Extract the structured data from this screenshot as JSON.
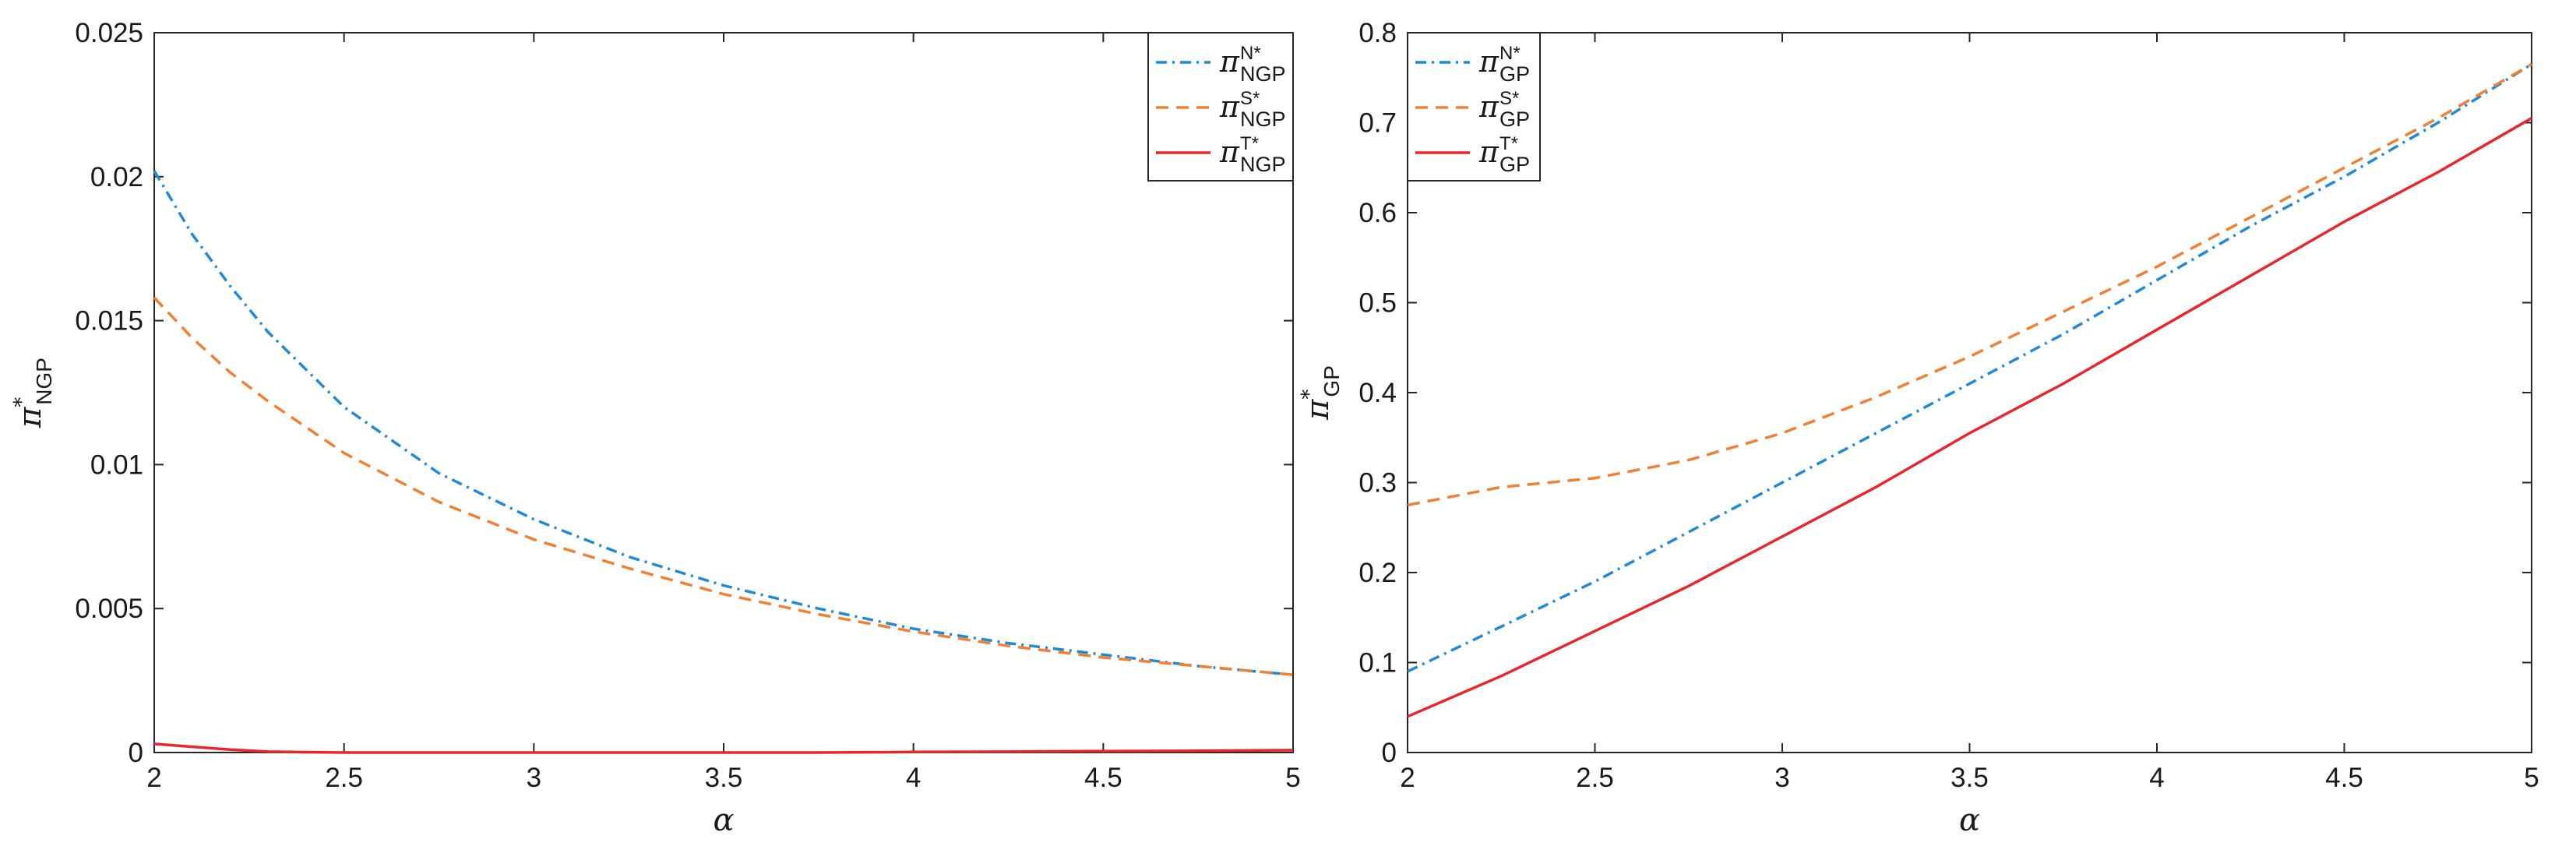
{
  "chart_data": [
    {
      "type": "line",
      "xlabel": "α",
      "ylabel": {
        "main": "π",
        "sup": "*",
        "sub": "NGP"
      },
      "xlim": [
        2,
        5
      ],
      "ylim": [
        0,
        0.025
      ],
      "xticks": [
        "2",
        "2.5",
        "3",
        "3.5",
        "4",
        "4.5",
        "5"
      ],
      "yticks": [
        "0",
        "0.005",
        "0.01",
        "0.015",
        "0.02",
        "0.025"
      ],
      "grid": false,
      "legend_position": "top-right",
      "x": [
        2,
        2.1,
        2.2,
        2.3,
        2.5,
        2.75,
        3,
        3.25,
        3.5,
        3.75,
        4,
        4.25,
        4.5,
        4.75,
        5
      ],
      "series": [
        {
          "name": {
            "main": "π",
            "sup": "N*",
            "sub": "NGP"
          },
          "color": "#1f8ad6",
          "style": "dashdot",
          "values": [
            0.0202,
            0.018,
            0.0162,
            0.0146,
            0.012,
            0.0097,
            0.0081,
            0.0068,
            0.0058,
            0.005,
            0.0043,
            0.0038,
            0.0034,
            0.003,
            0.0027
          ]
        },
        {
          "name": {
            "main": "π",
            "sup": "S*",
            "sub": "NGP"
          },
          "color": "#f28033",
          "style": "dashed",
          "values": [
            0.0158,
            0.0144,
            0.0132,
            0.0122,
            0.0104,
            0.0087,
            0.0074,
            0.0064,
            0.0055,
            0.0048,
            0.0042,
            0.0037,
            0.0033,
            0.003,
            0.0027
          ]
        },
        {
          "name": {
            "main": "π",
            "sup": "T*",
            "sub": "NGP"
          },
          "color": "#e8262b",
          "style": "solid",
          "values": [
            0.0003,
            0.0002,
            0.0001,
            3e-05,
            0.0,
            0.0,
            0.0,
            0.0,
            0.0,
            0.0,
            2e-05,
            3e-05,
            5e-05,
            6e-05,
            8e-05
          ]
        }
      ]
    },
    {
      "type": "line",
      "xlabel": "α",
      "ylabel": {
        "main": "π",
        "sup": "*",
        "sub": "GP"
      },
      "xlim": [
        2,
        5
      ],
      "ylim": [
        0,
        0.8
      ],
      "xticks": [
        "2",
        "2.5",
        "3",
        "3.5",
        "4",
        "4.5",
        "5"
      ],
      "yticks": [
        "0",
        "0.1",
        "0.2",
        "0.3",
        "0.4",
        "0.5",
        "0.6",
        "0.7",
        "0.8"
      ],
      "grid": false,
      "legend_position": "top-left",
      "x": [
        2,
        2.25,
        2.5,
        2.75,
        3,
        3.25,
        3.5,
        3.75,
        4,
        4.25,
        4.5,
        4.75,
        5
      ],
      "series": [
        {
          "name": {
            "main": "π",
            "sup": "N*",
            "sub": "GP"
          },
          "color": "#1f8ad6",
          "style": "dashdot",
          "values": [
            0.09,
            0.14,
            0.19,
            0.245,
            0.3,
            0.355,
            0.41,
            0.465,
            0.525,
            0.585,
            0.64,
            0.7,
            0.765
          ]
        },
        {
          "name": {
            "main": "π",
            "sup": "S*",
            "sub": "GP"
          },
          "color": "#f28033",
          "style": "dashed",
          "values": [
            0.275,
            0.295,
            0.305,
            0.325,
            0.355,
            0.395,
            0.44,
            0.49,
            0.54,
            0.595,
            0.65,
            0.705,
            0.765
          ]
        },
        {
          "name": {
            "main": "π",
            "sup": "T*",
            "sub": "GP"
          },
          "color": "#e8262b",
          "style": "solid",
          "values": [
            0.04,
            0.085,
            0.135,
            0.185,
            0.24,
            0.295,
            0.355,
            0.41,
            0.47,
            0.53,
            0.59,
            0.645,
            0.705
          ]
        }
      ]
    }
  ]
}
